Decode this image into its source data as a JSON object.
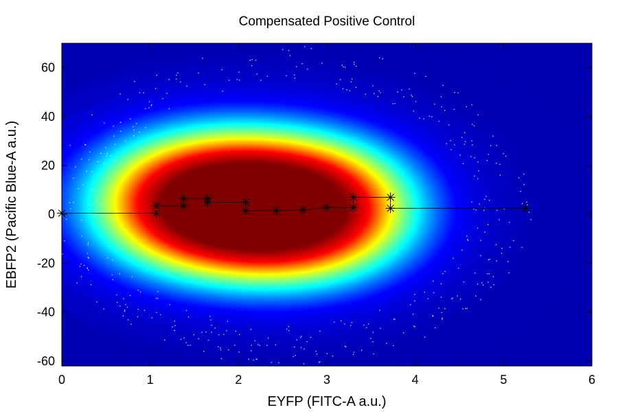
{
  "chart_data": {
    "type": "scatter",
    "title": "Compensated Positive Control",
    "xlabel": "EYFP (FITC-A a.u.)",
    "ylabel": "EBFP2 (Pacific Blue-A a.u.)",
    "xlim": [
      0,
      6
    ],
    "ylim": [
      -62,
      70
    ],
    "x_ticks": [
      0,
      1,
      2,
      3,
      4,
      5,
      6
    ],
    "y_ticks": [
      -60,
      -40,
      -20,
      0,
      20,
      40,
      60
    ],
    "grid": false,
    "legend": "none",
    "background": "density heatmap (jet colormap)",
    "colormap": [
      "#00008f",
      "#0000ff",
      "#00ffff",
      "#ffff00",
      "#ff0000",
      "#800000"
    ],
    "density_peaks": [
      {
        "x": 1.45,
        "y": 5,
        "weight": 1.0
      },
      {
        "x": 2.85,
        "y": 2,
        "weight": 1.0
      },
      {
        "x": 2.2,
        "y": 3,
        "weight": 0.55
      }
    ],
    "series": [
      {
        "color": "#000000",
        "marker": "asterisk",
        "points": [
          {
            "x": 0.0,
            "y": 0.5
          },
          {
            "x": 1.07,
            "y": 0.5
          },
          {
            "x": 1.07,
            "y": 3.5
          },
          {
            "x": 1.38,
            "y": 3.5
          },
          {
            "x": 1.38,
            "y": 6.5
          },
          {
            "x": 1.65,
            "y": 6.5
          },
          {
            "x": 1.65,
            "y": 5.0
          },
          {
            "x": 2.08,
            "y": 5.0
          },
          {
            "x": 2.08,
            "y": 1.5
          },
          {
            "x": 2.43,
            "y": 1.5
          },
          {
            "x": 2.73,
            "y": 1.8
          },
          {
            "x": 3.0,
            "y": 2.8
          },
          {
            "x": 3.3,
            "y": 2.8
          },
          {
            "x": 3.3,
            "y": 7.0
          },
          {
            "x": 3.72,
            "y": 7.0
          },
          {
            "x": 3.72,
            "y": 2.5
          },
          {
            "x": 5.25,
            "y": 2.5
          }
        ]
      }
    ]
  }
}
